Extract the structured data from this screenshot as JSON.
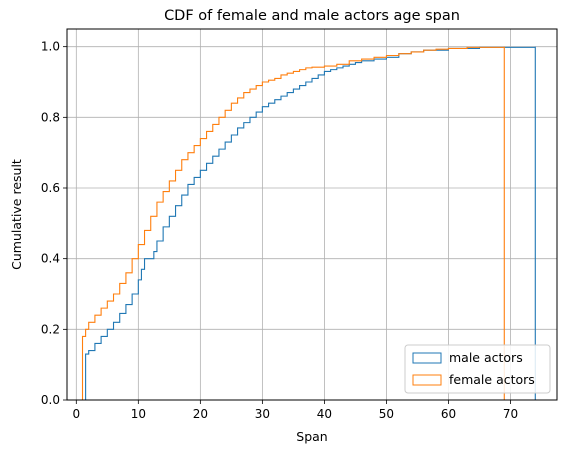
{
  "chart_data": {
    "type": "step",
    "title": "CDF of female and male actors age span",
    "xlabel": "Span",
    "ylabel": "Cumulative result",
    "xlim": [
      -1.5,
      77.5
    ],
    "ylim": [
      0,
      1.05
    ],
    "xticks": [
      0,
      10,
      20,
      30,
      40,
      50,
      60,
      70
    ],
    "yticks": [
      0.0,
      0.2,
      0.4,
      0.6,
      0.8,
      1.0
    ],
    "xtick_labels": [
      "0",
      "10",
      "20",
      "30",
      "40",
      "50",
      "60",
      "70"
    ],
    "ytick_labels": [
      "0.0",
      "0.2",
      "0.4",
      "0.6",
      "0.8",
      "1.0"
    ],
    "grid": true,
    "legend_position": "lower right",
    "series": [
      {
        "name": "male actors",
        "color": "#1f77b4",
        "x_start": 1,
        "x_end": 74,
        "points": [
          [
            1.5,
            0.13
          ],
          [
            2,
            0.14
          ],
          [
            3,
            0.16
          ],
          [
            4,
            0.18
          ],
          [
            5,
            0.2
          ],
          [
            6,
            0.22
          ],
          [
            7,
            0.245
          ],
          [
            8,
            0.27
          ],
          [
            9,
            0.3
          ],
          [
            10,
            0.34
          ],
          [
            10.5,
            0.37
          ],
          [
            11,
            0.4
          ],
          [
            12.5,
            0.42
          ],
          [
            13,
            0.45
          ],
          [
            14,
            0.49
          ],
          [
            15,
            0.52
          ],
          [
            16,
            0.55
          ],
          [
            17,
            0.58
          ],
          [
            18,
            0.61
          ],
          [
            19,
            0.63
          ],
          [
            20,
            0.65
          ],
          [
            21,
            0.67
          ],
          [
            22,
            0.69
          ],
          [
            23,
            0.71
          ],
          [
            24,
            0.73
          ],
          [
            25,
            0.75
          ],
          [
            26,
            0.77
          ],
          [
            27,
            0.785
          ],
          [
            28,
            0.8
          ],
          [
            29,
            0.815
          ],
          [
            30,
            0.83
          ],
          [
            31,
            0.84
          ],
          [
            32,
            0.85
          ],
          [
            33,
            0.86
          ],
          [
            34,
            0.87
          ],
          [
            35,
            0.88
          ],
          [
            36,
            0.89
          ],
          [
            37,
            0.9
          ],
          [
            38,
            0.91
          ],
          [
            39,
            0.92
          ],
          [
            40,
            0.93
          ],
          [
            41,
            0.935
          ],
          [
            42,
            0.94
          ],
          [
            43,
            0.945
          ],
          [
            44,
            0.95
          ],
          [
            45,
            0.955
          ],
          [
            46,
            0.96
          ],
          [
            48,
            0.965
          ],
          [
            50,
            0.97
          ],
          [
            52,
            0.98
          ],
          [
            54,
            0.985
          ],
          [
            56,
            0.99
          ],
          [
            60,
            0.995
          ],
          [
            65,
            0.998
          ],
          [
            74,
            1.0
          ]
        ]
      },
      {
        "name": "female actors",
        "color": "#ff7f0e",
        "x_start": 1,
        "x_end": 69,
        "points": [
          [
            1,
            0.18
          ],
          [
            1.5,
            0.2
          ],
          [
            2,
            0.22
          ],
          [
            3,
            0.24
          ],
          [
            4,
            0.26
          ],
          [
            5,
            0.28
          ],
          [
            6,
            0.3
          ],
          [
            7,
            0.33
          ],
          [
            8,
            0.36
          ],
          [
            9,
            0.4
          ],
          [
            10,
            0.44
          ],
          [
            11,
            0.48
          ],
          [
            12,
            0.52
          ],
          [
            13,
            0.56
          ],
          [
            14,
            0.59
          ],
          [
            15,
            0.62
          ],
          [
            16,
            0.65
          ],
          [
            17,
            0.68
          ],
          [
            18,
            0.7
          ],
          [
            19,
            0.72
          ],
          [
            20,
            0.74
          ],
          [
            21,
            0.76
          ],
          [
            22,
            0.78
          ],
          [
            23,
            0.8
          ],
          [
            24,
            0.82
          ],
          [
            25,
            0.84
          ],
          [
            26,
            0.855
          ],
          [
            27,
            0.87
          ],
          [
            28,
            0.88
          ],
          [
            29,
            0.89
          ],
          [
            30,
            0.9
          ],
          [
            31,
            0.905
          ],
          [
            32,
            0.91
          ],
          [
            33,
            0.92
          ],
          [
            34,
            0.925
          ],
          [
            35,
            0.93
          ],
          [
            36,
            0.935
          ],
          [
            37,
            0.94
          ],
          [
            38,
            0.942
          ],
          [
            40,
            0.945
          ],
          [
            42,
            0.95
          ],
          [
            44,
            0.96
          ],
          [
            46,
            0.965
          ],
          [
            48,
            0.97
          ],
          [
            50,
            0.975
          ],
          [
            52,
            0.98
          ],
          [
            54,
            0.985
          ],
          [
            56,
            0.99
          ],
          [
            58,
            0.993
          ],
          [
            60,
            0.995
          ],
          [
            63,
            0.998
          ],
          [
            69,
            1.0
          ]
        ]
      }
    ]
  }
}
